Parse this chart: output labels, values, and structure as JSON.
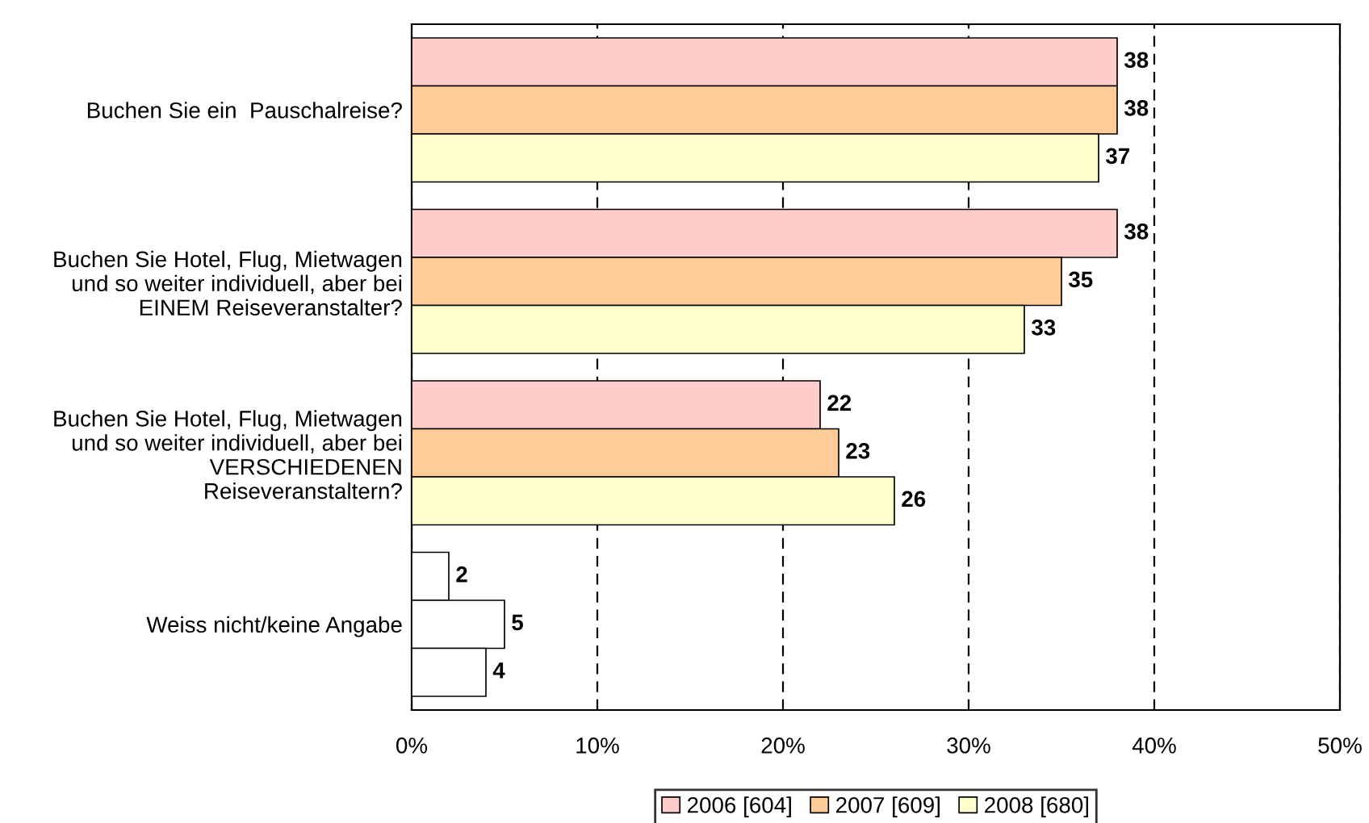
{
  "chart_data": {
    "type": "bar",
    "orientation": "horizontal",
    "categories": [
      "Buchen Sie ein  Pauschalreise?",
      "Buchen Sie Hotel, Flug, Mietwagen\nund so weiter individuell, aber bei\nEINEM Reiseveranstalter?",
      "Buchen Sie Hotel, Flug, Mietwagen\nund so weiter individuell, aber bei\nVERSCHIEDENEN\nReiseveranstaltern?",
      "Weiss nicht/keine Angabe"
    ],
    "series": [
      {
        "name": "2006 [604]",
        "color": "#ffcccc",
        "colors": [
          "#ffcccc",
          "#ffcccc",
          "#ffcccc",
          "#ffffff"
        ],
        "values": [
          38,
          38,
          22,
          2
        ]
      },
      {
        "name": "2007 [609]",
        "color": "#ffcc99",
        "colors": [
          "#ffcc99",
          "#ffcc99",
          "#ffcc99",
          "#ffffff"
        ],
        "values": [
          38,
          35,
          23,
          5
        ]
      },
      {
        "name": "2008 [680]",
        "color": "#ffffcc",
        "colors": [
          "#ffffcc",
          "#ffffcc",
          "#ffffcc",
          "#ffffff"
        ],
        "values": [
          37,
          33,
          26,
          4
        ]
      }
    ],
    "xlim": [
      0,
      50
    ],
    "xticks": [
      {
        "value": 0,
        "label": "0%"
      },
      {
        "value": 10,
        "label": "10%"
      },
      {
        "value": 20,
        "label": "20%"
      },
      {
        "value": 30,
        "label": "30%"
      },
      {
        "value": 40,
        "label": "40%"
      },
      {
        "value": 50,
        "label": "50%"
      }
    ],
    "grid": "x",
    "legend": "bottom",
    "data_labels": true
  }
}
